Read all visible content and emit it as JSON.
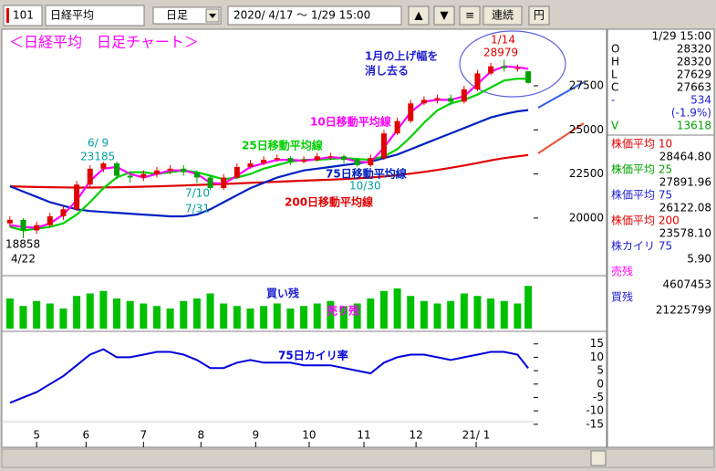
{
  "toolbar": {
    "code": "101",
    "name": "日経平均",
    "period": "日足",
    "range": "2020/ 4/17 ～  1/29 15:00",
    "buttons": [
      "▲",
      "▼",
      "≡",
      "連続",
      "円"
    ]
  },
  "chart_data": {
    "type": "candlestick",
    "title": "＜日経平均　日足チャート＞",
    "annotations": [
      "1月の上げ幅を",
      "消し去る",
      "1/14",
      "28979",
      "6/ 9",
      "23185",
      "18858",
      "4/22",
      "7/10",
      "7/31",
      "10/30"
    ],
    "x": [
      0,
      5,
      10,
      15,
      20,
      25,
      30,
      35,
      40,
      45,
      50,
      55,
      60,
      65,
      70,
      75,
      80,
      85,
      90,
      95,
      100,
      105,
      110,
      115,
      120,
      125,
      130,
      135,
      140,
      145,
      150,
      155,
      160,
      165,
      170,
      175,
      180,
      185,
      190,
      194
    ],
    "xlim": [
      -2,
      196
    ],
    "xticks": [
      {
        "value": 10,
        "label": "5"
      },
      {
        "value": 28.5,
        "label": "6"
      },
      {
        "value": 50,
        "label": "7"
      },
      {
        "value": 71.5,
        "label": "8"
      },
      {
        "value": 92,
        "label": "9"
      },
      {
        "value": 112,
        "label": "10"
      },
      {
        "value": 132.5,
        "label": "11"
      },
      {
        "value": 152,
        "label": "12"
      },
      {
        "value": 174.5,
        "label": "21/ 1"
      }
    ],
    "open": [
      19700,
      19900,
      19300,
      19600,
      20100,
      20500,
      21900,
      22800,
      23100,
      22400,
      22300,
      22500,
      22700,
      22800,
      22600,
      22300,
      21700,
      22300,
      22900,
      23100,
      23300,
      23400,
      23200,
      23300,
      23500,
      23500,
      23300,
      23000,
      23400,
      24800,
      25500,
      26500,
      26700,
      26800,
      26600,
      27300,
      28200,
      28600,
      28500,
      28320
    ],
    "high": [
      20100,
      20000,
      19800,
      20300,
      20700,
      22100,
      23000,
      23185,
      23200,
      22600,
      22700,
      22900,
      23000,
      23000,
      22700,
      22400,
      22500,
      23100,
      23300,
      23500,
      23600,
      23500,
      23500,
      23700,
      23700,
      23600,
      23400,
      23600,
      25000,
      25700,
      26700,
      26900,
      27000,
      27000,
      27500,
      28400,
      28800,
      28979,
      28700,
      28320
    ],
    "low": [
      19500,
      18858,
      19100,
      19500,
      19900,
      20400,
      21700,
      22600,
      22200,
      22000,
      22100,
      22300,
      22500,
      22400,
      22000,
      21600,
      21600,
      22200,
      22800,
      23000,
      23200,
      23000,
      23100,
      23200,
      23300,
      23100,
      22900,
      22900,
      23300,
      24700,
      25400,
      26400,
      26500,
      26400,
      26500,
      27200,
      28100,
      28300,
      28300,
      27629
    ],
    "close": [
      19900,
      19300,
      19600,
      20100,
      20500,
      21900,
      22800,
      23100,
      22400,
      22300,
      22500,
      22700,
      22800,
      22600,
      22300,
      21700,
      22300,
      22900,
      23100,
      23300,
      23400,
      23200,
      23300,
      23500,
      23500,
      23300,
      23000,
      23400,
      24800,
      25500,
      26500,
      26700,
      26800,
      26600,
      27300,
      28200,
      28600,
      28500,
      28500,
      27663
    ],
    "up_color": "#e00000",
    "down_color": "#00a000",
    "ylim": [
      16840,
      30550
    ],
    "yticks": [
      20000,
      22500,
      25000,
      27500
    ],
    "series": [
      {
        "name": "10日移動平均線",
        "color": "#ff00ff",
        "values": [
          19600,
          19500,
          19450,
          19700,
          20200,
          21000,
          22100,
          22800,
          22900,
          22500,
          22300,
          22500,
          22700,
          22700,
          22500,
          22000,
          21950,
          22400,
          22900,
          23100,
          23300,
          23300,
          23250,
          23350,
          23450,
          23400,
          23200,
          23150,
          24000,
          25000,
          26000,
          26600,
          26700,
          26700,
          26900,
          27600,
          28300,
          28600,
          28550,
          28464.8
        ]
      },
      {
        "name": "25日移動平均線",
        "color": "#00d000",
        "values": [
          19500,
          19300,
          19400,
          19500,
          19700,
          20200,
          20900,
          21700,
          22300,
          22600,
          22600,
          22500,
          22600,
          22700,
          22600,
          22400,
          22200,
          22300,
          22500,
          22800,
          23000,
          23200,
          23300,
          23300,
          23350,
          23400,
          23350,
          23300,
          23500,
          23900,
          24600,
          25400,
          26100,
          26500,
          26700,
          27000,
          27400,
          27800,
          27900,
          27891.96
        ]
      },
      {
        "name": "75日移動平均線",
        "color": "#0020c0",
        "values": [
          21800,
          21500,
          21200,
          20900,
          20700,
          20500,
          20400,
          20350,
          20300,
          20250,
          20200,
          20150,
          20100,
          20100,
          20200,
          20500,
          20900,
          21300,
          21700,
          22000,
          22300,
          22500,
          22700,
          22800,
          22900,
          23000,
          23100,
          23200,
          23400,
          23600,
          23900,
          24200,
          24500,
          24800,
          25100,
          25400,
          25700,
          25900,
          26050,
          26122.08
        ]
      },
      {
        "name": "200日移動平均線",
        "color": "#e00000",
        "values": [
          21800,
          21780,
          21760,
          21750,
          21740,
          21730,
          21730,
          21740,
          21750,
          21760,
          21780,
          21800,
          21820,
          21850,
          21880,
          21900,
          21930,
          21960,
          22000,
          22030,
          22060,
          22090,
          22120,
          22150,
          22180,
          22210,
          22250,
          22300,
          22360,
          22430,
          22520,
          22620,
          22730,
          22850,
          22980,
          23120,
          23270,
          23400,
          23500,
          23578.1
        ]
      }
    ],
    "volume": {
      "labels": [
        "買い残",
        "売り残"
      ],
      "color": "#00c000",
      "ylim": [
        0,
        100
      ],
      "values": [
        60,
        45,
        55,
        50,
        40,
        65,
        70,
        75,
        60,
        55,
        50,
        45,
        40,
        55,
        60,
        70,
        50,
        45,
        40,
        45,
        50,
        40,
        45,
        50,
        55,
        45,
        50,
        60,
        75,
        80,
        65,
        55,
        50,
        55,
        70,
        65,
        60,
        55,
        50,
        85
      ]
    },
    "kairi": {
      "label": "75日カイリ率",
      "color": "#0000dd",
      "ylim": [
        -19.5,
        19
      ],
      "yticks": [
        15,
        10,
        5,
        0,
        -5,
        -10,
        -15
      ],
      "values": [
        -7,
        -5,
        -3,
        0,
        3,
        7,
        11,
        13,
        10,
        10,
        11,
        12,
        12,
        11,
        9,
        6,
        6,
        8,
        9,
        8,
        8,
        8,
        7,
        7,
        7,
        6,
        5,
        4,
        8,
        10,
        11,
        11,
        10,
        9,
        10,
        11,
        12,
        12,
        11,
        5.9
      ]
    }
  },
  "info_panel": {
    "datetime": "1/29 15:00",
    "rows": [
      [
        "O",
        "28320"
      ],
      [
        "H",
        "28320"
      ],
      [
        "L",
        "27629"
      ],
      [
        "C",
        "27663"
      ],
      [
        "-",
        "534"
      ]
    ],
    "change_pct": "(-1.9%)",
    "volume": [
      "V",
      "13618"
    ],
    "indicators": [
      [
        "株価平均  10",
        "28464.80"
      ],
      [
        "株価平均  25",
        "27891.96"
      ],
      [
        "株価平均  75",
        "26122.08"
      ],
      [
        "株価平均 200",
        "23578.10"
      ],
      [
        "株カイリ  75",
        "5.90"
      ]
    ],
    "balances": [
      [
        "売残",
        "4607453"
      ],
      [
        "買残",
        "21225799"
      ]
    ]
  }
}
